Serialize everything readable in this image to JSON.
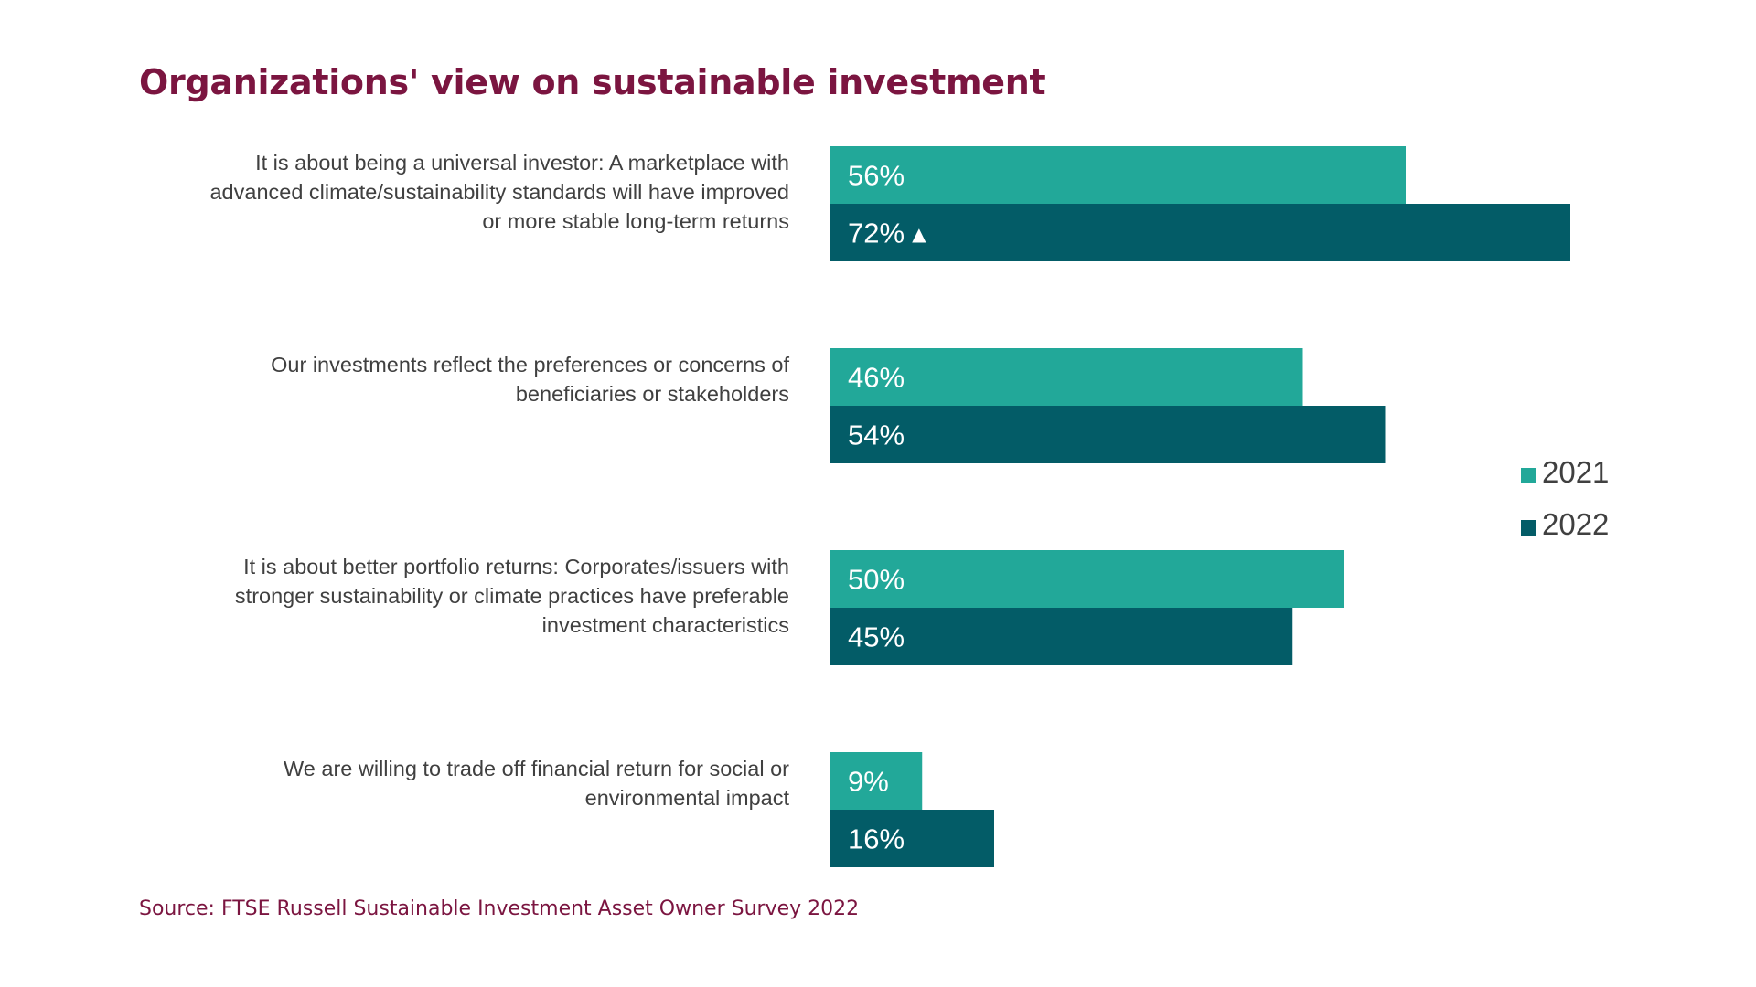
{
  "title": "Organizations' view on sustainable investment",
  "source": "Source: FTSE Russell Sustainable Investment Asset Owner Survey 2022",
  "colors": {
    "s2021": "#22a899",
    "s2022": "#035c67",
    "title": "#7b1540",
    "label": "#404040"
  },
  "chart_data": {
    "type": "bar",
    "orientation": "horizontal",
    "title": "Organizations' view on sustainable investment",
    "categories": [
      [
        "It is about being a universal investor: A marketplace with",
        "advanced climate/sustainability standards will have improved",
        "or more stable long-term returns"
      ],
      [
        "Our investments reflect the preferences or concerns of",
        "beneficiaries or stakeholders"
      ],
      [
        "It is about better portfolio returns: Corporates/issuers with",
        "stronger sustainability or climate practices have preferable",
        "investment characteristics"
      ],
      [
        "We are willing to trade off financial return for social or",
        "environmental impact"
      ]
    ],
    "series": [
      {
        "name": "2021",
        "values": [
          56,
          46,
          50,
          9
        ],
        "labels": [
          "56%",
          "46%",
          "50%",
          "9%"
        ]
      },
      {
        "name": "2022",
        "values": [
          72,
          54,
          45,
          16
        ],
        "labels": [
          "72%",
          "54%",
          "45%",
          "16%"
        ],
        "markers": [
          "▲",
          "",
          "",
          ""
        ]
      }
    ],
    "unit": "%",
    "xlim": [
      0,
      100
    ],
    "grid": false,
    "legend_position": "right"
  }
}
